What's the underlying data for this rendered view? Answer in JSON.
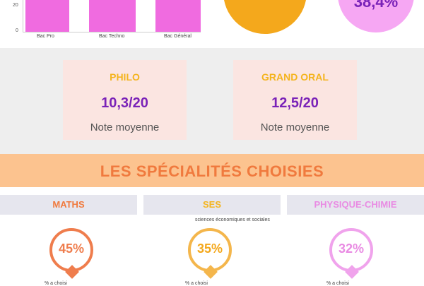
{
  "top": {
    "y_ticks": [
      "20",
      "0"
    ],
    "categories": [
      "Bac Pro",
      "Bac Techno",
      "Bac Général"
    ],
    "big_circle_right_text": "38,4%"
  },
  "colors": {
    "bar": "#f06be0",
    "orange": "#f4a81c",
    "pink": "#f6a7f3",
    "accent_purple": "#7a22b8",
    "accent_yellow": "#f4b41e",
    "banner": "#fcc38f",
    "banner_text": "#f07a3e"
  },
  "cards": [
    {
      "title": "PHILO",
      "score": "10,3/20",
      "subtitle": "Note moyenne"
    },
    {
      "title": "GRAND ORAL",
      "score": "12,5/20",
      "subtitle": "Note moyenne"
    }
  ],
  "section": {
    "title": "LES SPÉCIALITÉS CHOISIES"
  },
  "specialties": [
    {
      "name": "MATHS",
      "value": "45%",
      "note": ""
    },
    {
      "name": "SES",
      "value": "35%",
      "note": "sciences économiques et sociales"
    },
    {
      "name": "PHYSIQUE-CHIMIE",
      "value": "32%",
      "note": ""
    }
  ],
  "bottom_fragments": [
    "% a choisi",
    "% a choisi",
    "% a choisi"
  ]
}
